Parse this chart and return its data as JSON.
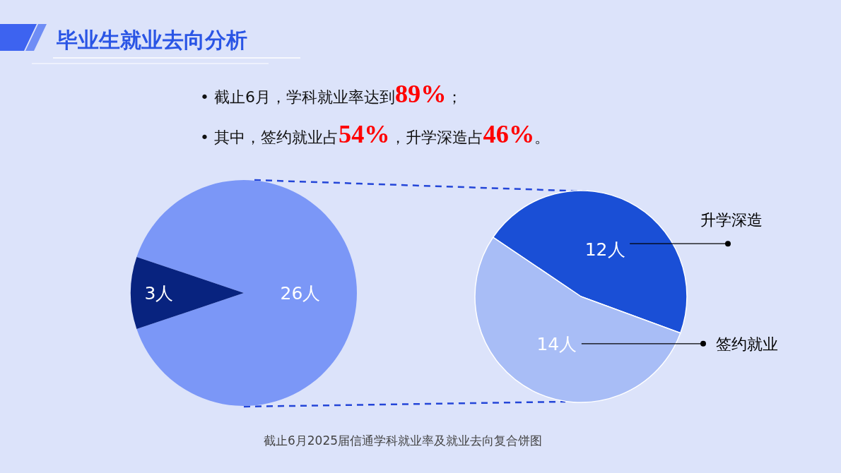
{
  "chart_data": [
    {
      "type": "pie",
      "title": "毕业生就业去向分析",
      "annotations": [
        "•  截止6月，学科就业率达到**89%**；",
        "•  其中，签约就业占**54%**，升学深造占**46%**。",
        "截止6月2025届信通学科就业率及就业去向复合饼图"
      ],
      "categories": [
        null,
        null
      ],
      "values": [
        26,
        3
      ],
      "value_labels": [
        "26人",
        "3人"
      ],
      "colors": [
        "#7b97f7",
        "#08237f"
      ]
    },
    {
      "type": "pie",
      "categories": [
        "升学深造",
        "签约就业"
      ],
      "values": [
        12,
        14
      ],
      "value_labels": [
        "12人",
        "14人"
      ],
      "colors": [
        "#1a4fd6",
        "#a8bdf6"
      ]
    }
  ]
}
